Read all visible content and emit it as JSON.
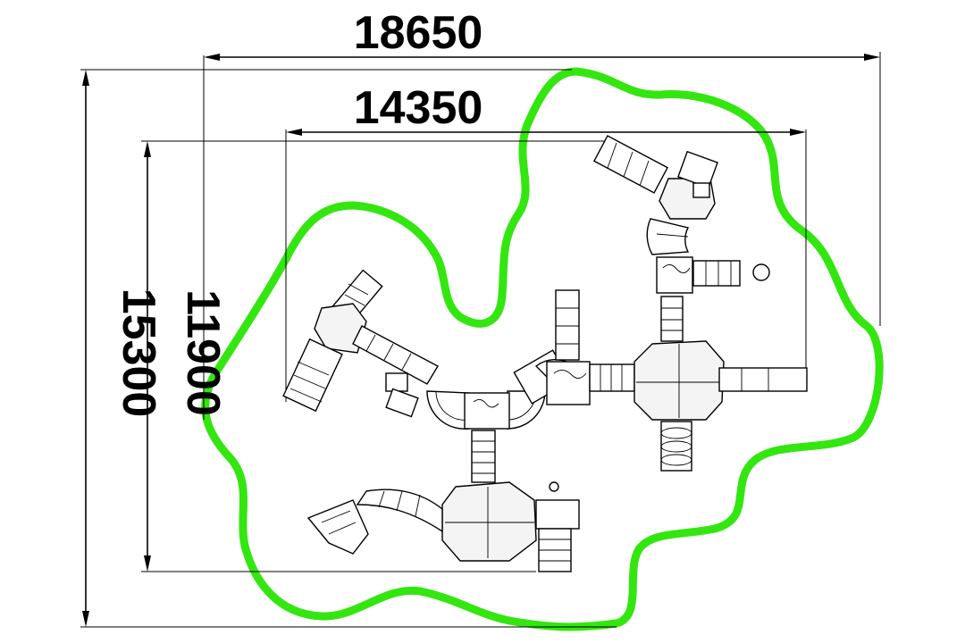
{
  "dimensions": {
    "overall_width": "18650",
    "inner_width": "14350",
    "overall_height": "15300",
    "inner_height": "11900"
  },
  "colors": {
    "safety_zone": "#33e60f",
    "lines": "#000000",
    "background": "#ffffff"
  }
}
